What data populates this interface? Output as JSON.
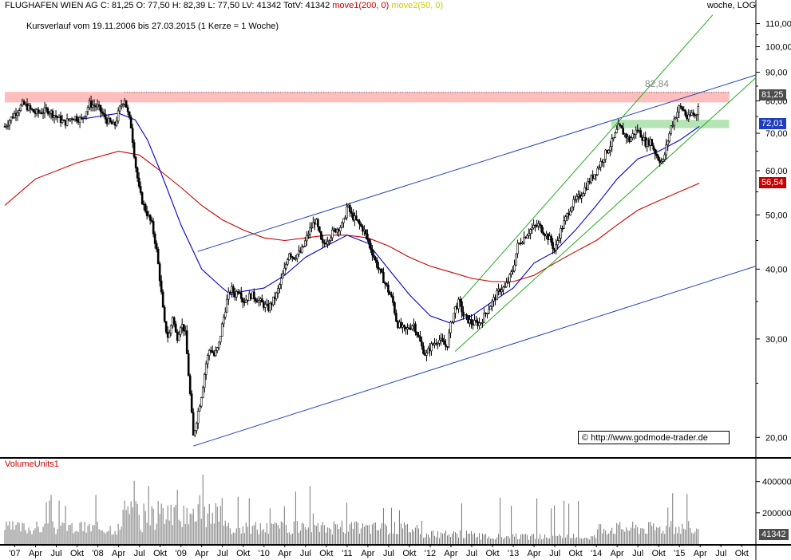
{
  "header": {
    "symbol": "FLUGHAFEN WIEN AG",
    "ohlc": "C: 81,25 O: 77,50 H: 82,39 L: 77,50 LV: 41342 TotV: 41342",
    "move1": "move1(200, 0)",
    "move2": "move2(50, 0)",
    "scale_mode": "woche, LOG"
  },
  "subtitle": "Kursverlauf vom 19.11.2006 bis 27.03.2015 (1 Kerze = 1 Woche)",
  "volume_panel_title": "VolumeUnits1",
  "copyright": "© http://www.godmode-trader.de",
  "colors": {
    "ma200": "#cc0000",
    "ma50": "#0000cc",
    "trend_blue": "#2244bb",
    "trend_green": "#22aa22",
    "resistance_zone": "#ffb3b3",
    "support_zone": "#a8e0a8",
    "price": "#000000"
  },
  "chart_data": {
    "type": "line",
    "y_scale": "log",
    "ylim": [
      18.5,
      115
    ],
    "y_ticks": [
      "110,00",
      "100,00",
      "90,00",
      "80,00",
      "70,00",
      "60,00",
      "50,00",
      "40,00",
      "30,00",
      "20,00"
    ],
    "y_tick_values": [
      110,
      100,
      90,
      80,
      70,
      60,
      50,
      40,
      30,
      20
    ],
    "x_range": [
      2006.88,
      2015.92
    ],
    "x_ticks": [
      {
        "label": "'07",
        "t": 2007.0
      },
      {
        "label": "Apr",
        "t": 2007.25
      },
      {
        "label": "Jul",
        "t": 2007.5
      },
      {
        "label": "Okt",
        "t": 2007.75
      },
      {
        "label": "'08",
        "t": 2008.0
      },
      {
        "label": "Apr",
        "t": 2008.25
      },
      {
        "label": "Jul",
        "t": 2008.5
      },
      {
        "label": "Okt",
        "t": 2008.75
      },
      {
        "label": "'09",
        "t": 2009.0
      },
      {
        "label": "Apr",
        "t": 2009.25
      },
      {
        "label": "Jul",
        "t": 2009.5
      },
      {
        "label": "Okt",
        "t": 2009.75
      },
      {
        "label": "'10",
        "t": 2010.0
      },
      {
        "label": "Apr",
        "t": 2010.25
      },
      {
        "label": "Jul",
        "t": 2010.5
      },
      {
        "label": "Okt",
        "t": 2010.75
      },
      {
        "label": "'11",
        "t": 2011.0
      },
      {
        "label": "Apr",
        "t": 2011.25
      },
      {
        "label": "Jul",
        "t": 2011.5
      },
      {
        "label": "Okt",
        "t": 2011.75
      },
      {
        "label": "'12",
        "t": 2012.0
      },
      {
        "label": "Apr",
        "t": 2012.25
      },
      {
        "label": "Jul",
        "t": 2012.5
      },
      {
        "label": "Okt",
        "t": 2012.75
      },
      {
        "label": "'13",
        "t": 2013.0
      },
      {
        "label": "Apr",
        "t": 2013.25
      },
      {
        "label": "Jul",
        "t": 2013.5
      },
      {
        "label": "Okt",
        "t": 2013.75
      },
      {
        "label": "'14",
        "t": 2014.0
      },
      {
        "label": "Apr",
        "t": 2014.25
      },
      {
        "label": "Jul",
        "t": 2014.5
      },
      {
        "label": "Okt",
        "t": 2014.75
      },
      {
        "label": "'15",
        "t": 2015.0
      },
      {
        "label": "Apr",
        "t": 2015.25
      },
      {
        "label": "Jul",
        "t": 2015.5
      },
      {
        "label": "Okt",
        "t": 2015.75
      }
    ],
    "series": [
      {
        "key": "price",
        "points": [
          [
            2006.88,
            72
          ],
          [
            2007.0,
            76
          ],
          [
            2007.1,
            79
          ],
          [
            2007.25,
            76
          ],
          [
            2007.4,
            77
          ],
          [
            2007.5,
            75
          ],
          [
            2007.6,
            73
          ],
          [
            2007.7,
            75
          ],
          [
            2007.8,
            74
          ],
          [
            2007.9,
            79
          ],
          [
            2008.0,
            78
          ],
          [
            2008.1,
            74
          ],
          [
            2008.2,
            72
          ],
          [
            2008.27,
            78
          ],
          [
            2008.32,
            81
          ],
          [
            2008.36,
            76
          ],
          [
            2008.4,
            72
          ],
          [
            2008.45,
            62
          ],
          [
            2008.5,
            55
          ],
          [
            2008.55,
            52
          ],
          [
            2008.6,
            50
          ],
          [
            2008.65,
            48
          ],
          [
            2008.7,
            44
          ],
          [
            2008.75,
            38
          ],
          [
            2008.8,
            32
          ],
          [
            2008.85,
            30
          ],
          [
            2008.9,
            33
          ],
          [
            2008.95,
            30
          ],
          [
            2009.0,
            32
          ],
          [
            2009.05,
            31
          ],
          [
            2009.1,
            25
          ],
          [
            2009.15,
            20
          ],
          [
            2009.2,
            22
          ],
          [
            2009.25,
            24
          ],
          [
            2009.3,
            27
          ],
          [
            2009.35,
            29
          ],
          [
            2009.4,
            28
          ],
          [
            2009.45,
            29
          ],
          [
            2009.5,
            32
          ],
          [
            2009.55,
            35
          ],
          [
            2009.6,
            37
          ],
          [
            2009.65,
            36
          ],
          [
            2009.7,
            37
          ],
          [
            2009.75,
            35
          ],
          [
            2009.85,
            36
          ],
          [
            2009.95,
            35
          ],
          [
            2010.05,
            34
          ],
          [
            2010.15,
            36
          ],
          [
            2010.25,
            40
          ],
          [
            2010.3,
            43
          ],
          [
            2010.35,
            42
          ],
          [
            2010.45,
            43
          ],
          [
            2010.55,
            47
          ],
          [
            2010.62,
            49
          ],
          [
            2010.67,
            46
          ],
          [
            2010.7,
            44
          ],
          [
            2010.75,
            45
          ],
          [
            2010.85,
            47
          ],
          [
            2010.95,
            48
          ],
          [
            2011.0,
            52
          ],
          [
            2011.05,
            50
          ],
          [
            2011.1,
            49
          ],
          [
            2011.15,
            48
          ],
          [
            2011.2,
            47
          ],
          [
            2011.25,
            45
          ],
          [
            2011.3,
            43
          ],
          [
            2011.35,
            41
          ],
          [
            2011.45,
            38
          ],
          [
            2011.55,
            35
          ],
          [
            2011.6,
            32
          ],
          [
            2011.7,
            31
          ],
          [
            2011.8,
            32
          ],
          [
            2011.9,
            29
          ],
          [
            2011.95,
            28
          ],
          [
            2012.0,
            29
          ],
          [
            2012.1,
            30
          ],
          [
            2012.2,
            29
          ],
          [
            2012.25,
            32
          ],
          [
            2012.3,
            34
          ],
          [
            2012.35,
            35
          ],
          [
            2012.4,
            33
          ],
          [
            2012.5,
            32
          ],
          [
            2012.6,
            32
          ],
          [
            2012.7,
            34
          ],
          [
            2012.8,
            36
          ],
          [
            2012.85,
            37
          ],
          [
            2012.9,
            37
          ],
          [
            2013.0,
            40
          ],
          [
            2013.05,
            44
          ],
          [
            2013.1,
            45
          ],
          [
            2013.2,
            47
          ],
          [
            2013.3,
            48
          ],
          [
            2013.35,
            47
          ],
          [
            2013.45,
            45
          ],
          [
            2013.5,
            43
          ],
          [
            2013.55,
            46
          ],
          [
            2013.6,
            48
          ],
          [
            2013.7,
            52
          ],
          [
            2013.8,
            54
          ],
          [
            2013.9,
            57
          ],
          [
            2014.0,
            60
          ],
          [
            2014.1,
            64
          ],
          [
            2014.2,
            68
          ],
          [
            2014.27,
            72
          ],
          [
            2014.33,
            70
          ],
          [
            2014.4,
            68
          ],
          [
            2014.45,
            70
          ],
          [
            2014.5,
            71
          ],
          [
            2014.55,
            69
          ],
          [
            2014.6,
            67
          ],
          [
            2014.65,
            68
          ],
          [
            2014.7,
            65
          ],
          [
            2014.75,
            63
          ],
          [
            2014.8,
            62
          ],
          [
            2014.85,
            67
          ],
          [
            2014.9,
            72
          ],
          [
            2014.95,
            75
          ],
          [
            2015.0,
            78
          ],
          [
            2015.05,
            77
          ],
          [
            2015.1,
            74
          ],
          [
            2015.15,
            76
          ],
          [
            2015.2,
            75
          ],
          [
            2015.24,
            81.25
          ]
        ]
      },
      {
        "key": "ma200",
        "points": [
          [
            2006.88,
            52
          ],
          [
            2007.25,
            58
          ],
          [
            2007.75,
            62
          ],
          [
            2008.25,
            65
          ],
          [
            2008.5,
            64
          ],
          [
            2008.75,
            60
          ],
          [
            2009.0,
            56
          ],
          [
            2009.25,
            52
          ],
          [
            2009.5,
            49
          ],
          [
            2009.75,
            47
          ],
          [
            2010.0,
            45.5
          ],
          [
            2010.25,
            45
          ],
          [
            2010.5,
            45.5
          ],
          [
            2010.75,
            46
          ],
          [
            2011.0,
            46
          ],
          [
            2011.25,
            45.5
          ],
          [
            2011.5,
            44
          ],
          [
            2011.75,
            42
          ],
          [
            2012.0,
            40.5
          ],
          [
            2012.25,
            39.5
          ],
          [
            2012.5,
            38.5
          ],
          [
            2012.75,
            38
          ],
          [
            2013.0,
            38
          ],
          [
            2013.25,
            39
          ],
          [
            2013.5,
            41
          ],
          [
            2013.75,
            43
          ],
          [
            2014.0,
            45
          ],
          [
            2014.25,
            48
          ],
          [
            2014.5,
            51
          ],
          [
            2014.75,
            53
          ],
          [
            2015.0,
            55
          ],
          [
            2015.24,
            57
          ]
        ]
      },
      {
        "key": "ma50",
        "points": [
          [
            2007.75,
            74
          ],
          [
            2008.25,
            76
          ],
          [
            2008.45,
            74
          ],
          [
            2008.6,
            68
          ],
          [
            2008.75,
            60
          ],
          [
            2009.0,
            48
          ],
          [
            2009.25,
            40
          ],
          [
            2009.5,
            37
          ],
          [
            2009.6,
            36
          ],
          [
            2009.75,
            36.5
          ],
          [
            2010.0,
            37
          ],
          [
            2010.25,
            39
          ],
          [
            2010.5,
            42
          ],
          [
            2010.75,
            44
          ],
          [
            2011.0,
            46
          ],
          [
            2011.25,
            44.5
          ],
          [
            2011.5,
            40
          ],
          [
            2011.75,
            36
          ],
          [
            2012.0,
            33
          ],
          [
            2012.25,
            32
          ],
          [
            2012.5,
            33
          ],
          [
            2012.75,
            35
          ],
          [
            2013.0,
            37
          ],
          [
            2013.25,
            41
          ],
          [
            2013.5,
            43
          ],
          [
            2013.75,
            47
          ],
          [
            2014.0,
            52
          ],
          [
            2014.25,
            58
          ],
          [
            2014.5,
            63
          ],
          [
            2014.75,
            65
          ],
          [
            2015.0,
            68
          ],
          [
            2015.24,
            72
          ]
        ]
      },
      {
        "key": "trend_blue_upper",
        "points": [
          [
            2009.2,
            43
          ],
          [
            2015.92,
            89
          ]
        ]
      },
      {
        "key": "trend_blue_lower",
        "points": [
          [
            2009.15,
            19.3
          ],
          [
            2015.92,
            40.5
          ]
        ]
      },
      {
        "key": "trend_green_upper",
        "points": [
          [
            2012.28,
            34
          ],
          [
            2015.4,
            114
          ]
        ]
      },
      {
        "key": "trend_green_lower",
        "points": [
          [
            2012.3,
            28.5
          ],
          [
            2015.92,
            88
          ]
        ]
      }
    ],
    "zones": [
      {
        "key": "resistance",
        "t0": 2006.88,
        "t1": 2015.6,
        "y0": 79.5,
        "y1": 83
      },
      {
        "key": "support",
        "t0": 2014.18,
        "t1": 2015.6,
        "y0": 71.5,
        "y1": 74
      }
    ],
    "annotations": [
      {
        "text": "82,84",
        "value": 82.84
      },
      {
        "text": "81,25",
        "value": 81.25,
        "style": "dark"
      },
      {
        "text": "72,01",
        "value": 72.01,
        "style": "blue"
      },
      {
        "text": "56,54",
        "value": 56.54,
        "style": "red"
      }
    ],
    "volume": {
      "y_ticks": [
        "400000",
        "200000"
      ],
      "y_tick_values": [
        400000,
        200000
      ],
      "ylim": [
        0,
        480000
      ],
      "last_label": "41342",
      "last_value": 41342
    }
  }
}
